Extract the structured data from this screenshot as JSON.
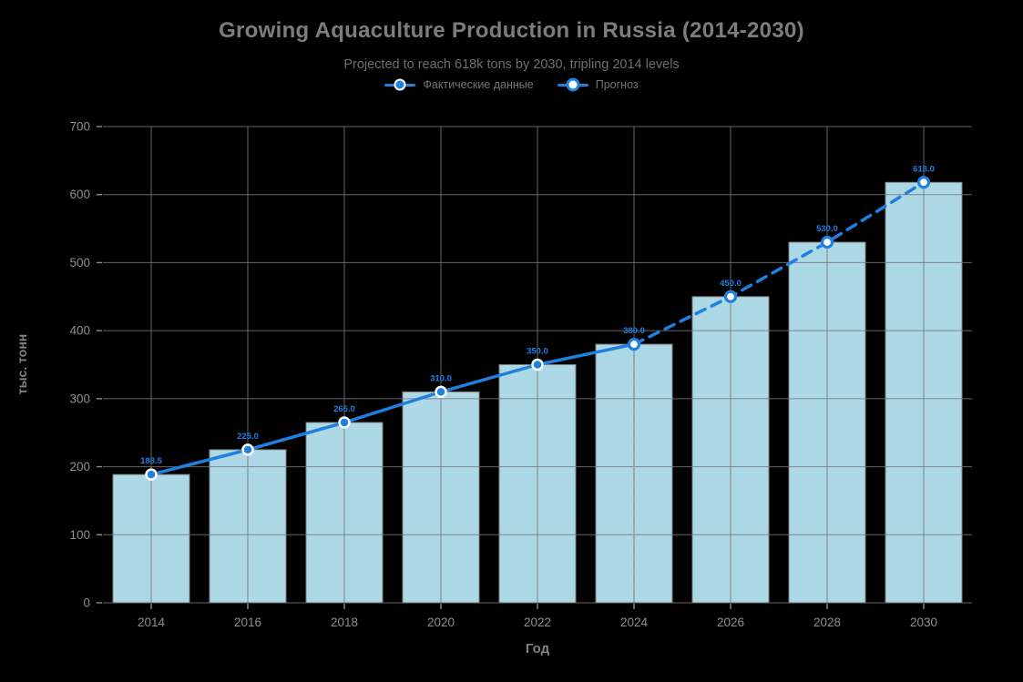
{
  "page": {
    "background": "#000000"
  },
  "chart_data": {
    "type": "bar+line",
    "title": "Growing Aquaculture Production in Russia (2014-2030)",
    "subtitle": "Projected to reach 618k tons by 2030, tripling 2014 levels",
    "xlabel": "Год",
    "ylabel": "тыс. тонн",
    "categories": [
      2014,
      2016,
      2018,
      2020,
      2022,
      2024,
      2026,
      2028,
      2030
    ],
    "bar_values": [
      188.5,
      225.0,
      265.0,
      310.0,
      350.0,
      380.0,
      450.0,
      530.0,
      618.0
    ],
    "point_labels": [
      "188.5",
      "225.0",
      "265.0",
      "310.0",
      "350.0",
      "380.0",
      "450.0",
      "530.0",
      "618.0"
    ],
    "series": [
      {
        "name": "Фактические данные",
        "x": [
          2014,
          2016,
          2018,
          2020,
          2022,
          2024
        ],
        "values": [
          188.5,
          225.0,
          265.0,
          310.0,
          350.0,
          380.0
        ],
        "line_style": "solid",
        "marker": "filled"
      },
      {
        "name": "Прогноз",
        "x": [
          2024,
          2026,
          2028,
          2030
        ],
        "values": [
          380.0,
          450.0,
          530.0,
          618.0
        ],
        "line_style": "dashed",
        "marker": "open"
      }
    ],
    "open_marker_start_index": 5,
    "solid_line_end_index": 5,
    "forecast_divider_index": 5,
    "ylim": [
      0,
      700
    ],
    "yticks": [
      0,
      100,
      200,
      300,
      400,
      500,
      600,
      700
    ],
    "grid": true,
    "legend_position": "top-center",
    "colors": {
      "bar_fill": "#add8e6",
      "bar_edge": "#808080",
      "line": "#1f80e0",
      "marker_filled_fill": "#1f80e0",
      "marker_filled_ring": "#ffffff",
      "marker_open_fill": "#ffffff",
      "marker_open_ring": "#1f80e0",
      "point_label_text": "#1f80e0",
      "grid": "#777777",
      "tick_text": "#8e8e8e",
      "divider": "#999999",
      "background": "#000000"
    }
  }
}
